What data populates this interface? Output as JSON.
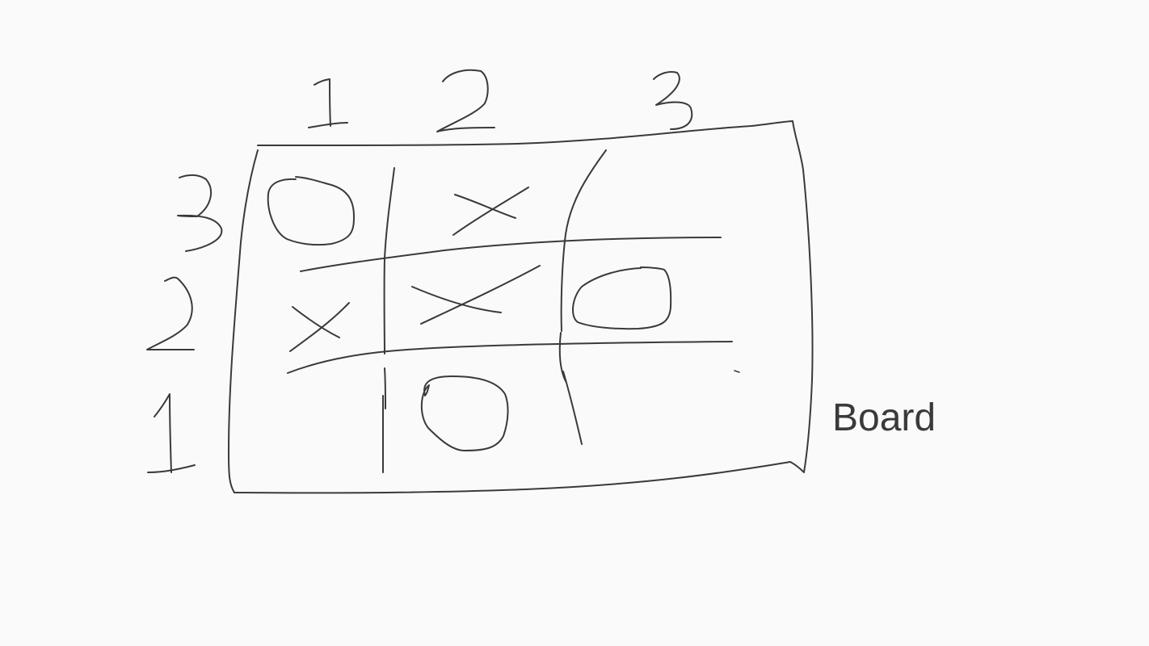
{
  "label": "Board",
  "column_labels": [
    "1",
    "2",
    "3"
  ],
  "row_labels": [
    "3",
    "2",
    "1"
  ],
  "ink_color": "#3a3a3a",
  "background_color": "#fafafa",
  "grid": {
    "rows": [
      [
        "O",
        "X",
        ""
      ],
      [
        "X",
        "X",
        "O"
      ],
      [
        "",
        "O",
        ""
      ]
    ]
  }
}
